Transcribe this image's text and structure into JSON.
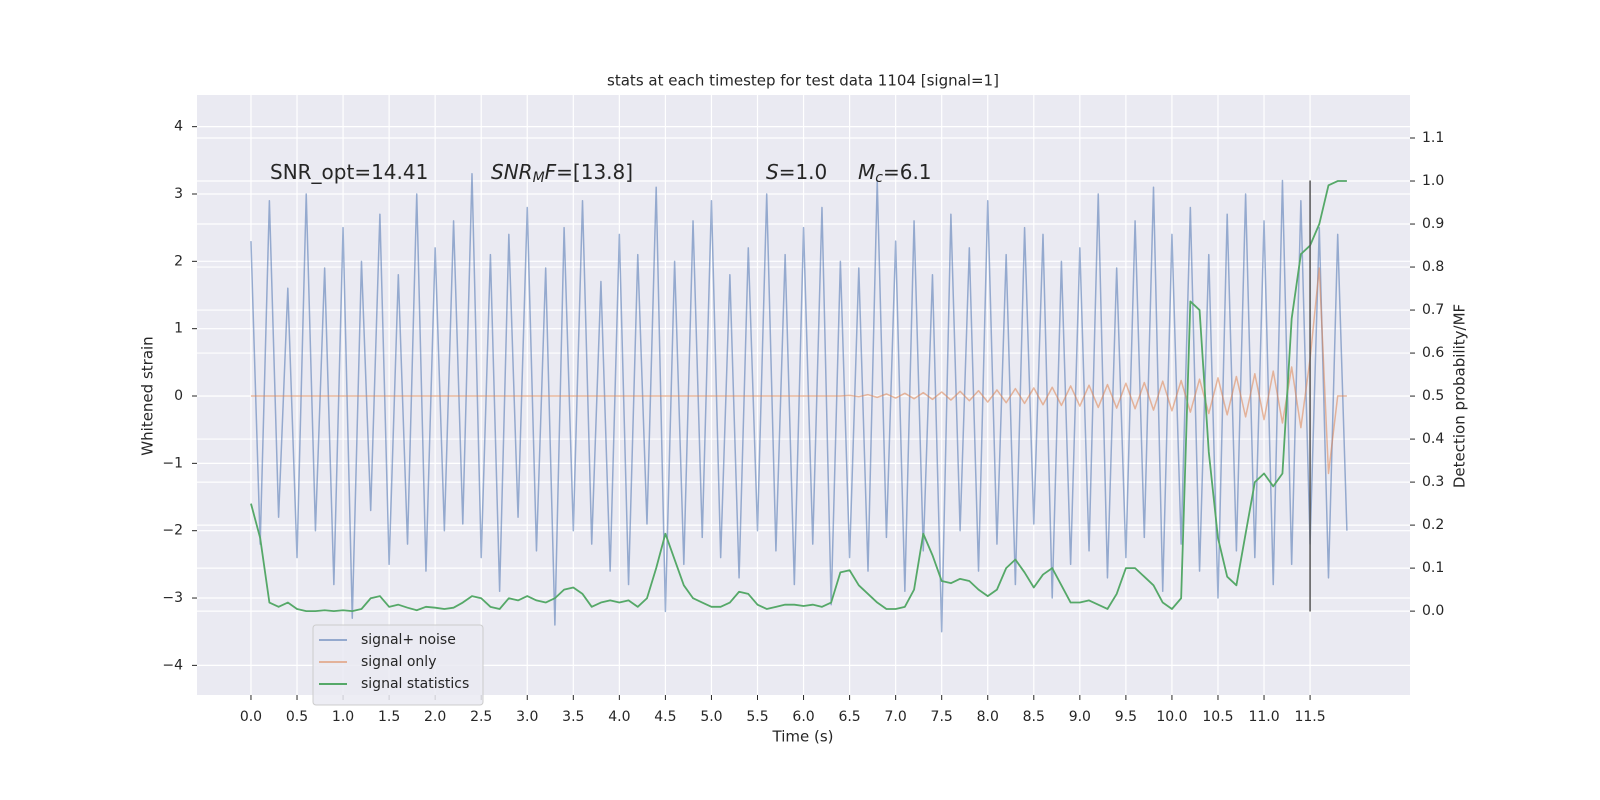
{
  "chart_data": {
    "type": "line",
    "title": "stats at each timestep for test data 1104 [signal=1]",
    "xlabel": "Time (s)",
    "ylabel": "Whitened strain",
    "y2label": "Detection probability/MF",
    "annotations": [
      [
        "SNR_opt=14.41"
      ],
      [
        "SNR",
        "M",
        "F",
        "=[13.8]"
      ],
      [
        "S",
        "=1.0"
      ],
      [
        "M",
        "c",
        "=6.1"
      ]
    ],
    "x": [
      0.0,
      0.1,
      0.2,
      0.3,
      0.4,
      0.5,
      0.6,
      0.7,
      0.8,
      0.9,
      1.0,
      1.1,
      1.2,
      1.3,
      1.4,
      1.5,
      1.6,
      1.7,
      1.8,
      1.9,
      2.0,
      2.1,
      2.2,
      2.3,
      2.4,
      2.5,
      2.6,
      2.7,
      2.8,
      2.9,
      3.0,
      3.1,
      3.2,
      3.3,
      3.4,
      3.5,
      3.6,
      3.7,
      3.8,
      3.9,
      4.0,
      4.1,
      4.2,
      4.3,
      4.4,
      4.5,
      4.6,
      4.7,
      4.8,
      4.9,
      5.0,
      5.1,
      5.2,
      5.3,
      5.4,
      5.5,
      5.6,
      5.7,
      5.8,
      5.9,
      6.0,
      6.1,
      6.2,
      6.3,
      6.4,
      6.5,
      6.6,
      6.7,
      6.8,
      6.9,
      7.0,
      7.1,
      7.2,
      7.3,
      7.4,
      7.5,
      7.6,
      7.7,
      7.8,
      7.9,
      8.0,
      8.1,
      8.2,
      8.3,
      8.4,
      8.5,
      8.6,
      8.7,
      8.8,
      8.9,
      9.0,
      9.1,
      9.2,
      9.3,
      9.4,
      9.5,
      9.6,
      9.7,
      9.8,
      9.9,
      10.0,
      10.1,
      10.2,
      10.3,
      10.4,
      10.5,
      10.6,
      10.7,
      10.8,
      10.9,
      11.0,
      11.1,
      11.2,
      11.3,
      11.4,
      11.5,
      11.6,
      11.7,
      11.8,
      11.9
    ],
    "series": [
      {
        "name": "signal+ noise",
        "color": "#4c72b0",
        "axis": "y",
        "values": [
          2.3,
          -2.2,
          2.9,
          -1.8,
          1.6,
          -2.4,
          3.0,
          -2.0,
          1.9,
          -2.8,
          2.5,
          -3.3,
          2.0,
          -1.7,
          2.7,
          -2.5,
          1.8,
          -2.2,
          3.0,
          -2.6,
          2.2,
          -2.0,
          2.6,
          -1.9,
          3.3,
          -2.4,
          2.1,
          -2.9,
          2.4,
          -1.8,
          2.8,
          -2.3,
          1.9,
          -3.4,
          2.5,
          -2.0,
          2.9,
          -2.2,
          1.7,
          -2.6,
          2.4,
          -2.8,
          2.1,
          -1.9,
          3.1,
          -3.2,
          2.0,
          -2.5,
          2.6,
          -2.1,
          2.9,
          -2.4,
          1.8,
          -2.7,
          2.2,
          -2.0,
          3.0,
          -2.3,
          2.1,
          -2.8,
          2.5,
          -2.2,
          2.8,
          -3.1,
          2.0,
          -2.4,
          1.9,
          -2.6,
          3.2,
          -2.1,
          2.3,
          -2.9,
          2.6,
          -2.3,
          1.8,
          -3.5,
          2.7,
          -2.0,
          2.2,
          -2.6,
          2.9,
          -2.2,
          2.1,
          -2.8,
          2.5,
          -1.9,
          2.4,
          -3.0,
          2.0,
          -2.5,
          2.2,
          -2.3,
          3.0,
          -2.7,
          1.9,
          -2.4,
          2.6,
          -2.1,
          3.1,
          -2.9,
          2.4,
          -2.2,
          2.8,
          -2.6,
          2.1,
          -3.0,
          2.7,
          -2.3,
          3.0,
          -2.4,
          2.6,
          -2.8,
          3.2,
          -2.5,
          2.9,
          -2.2,
          2.5,
          -2.7,
          2.4,
          -2.0
        ]
      },
      {
        "name": "signal only",
        "color": "#dd8452",
        "axis": "y",
        "values": [
          0,
          0,
          0,
          0,
          0,
          0,
          0,
          0,
          0,
          0,
          0,
          0,
          0,
          0,
          0,
          0,
          0,
          0,
          0,
          0,
          0,
          0,
          0,
          0,
          0,
          0,
          0,
          0,
          0,
          0,
          0,
          0,
          0,
          0,
          0,
          0,
          0,
          0,
          0,
          0,
          0,
          0,
          0,
          0,
          0,
          0,
          0,
          0,
          0,
          0,
          0,
          0,
          0,
          0,
          0,
          0,
          0,
          0,
          0,
          0,
          0,
          0,
          0,
          0,
          0,
          0.01,
          -0.01,
          0.02,
          -0.02,
          0.03,
          -0.03,
          0.04,
          -0.04,
          0.05,
          -0.05,
          0.06,
          -0.06,
          0.07,
          -0.07,
          0.08,
          -0.09,
          0.09,
          -0.1,
          0.11,
          -0.11,
          0.12,
          -0.13,
          0.13,
          -0.14,
          0.15,
          -0.15,
          0.16,
          -0.17,
          0.17,
          -0.18,
          0.19,
          -0.19,
          0.2,
          -0.21,
          0.22,
          -0.22,
          0.23,
          -0.24,
          0.25,
          -0.26,
          0.27,
          -0.28,
          0.29,
          -0.31,
          0.33,
          -0.35,
          0.37,
          -0.4,
          0.43,
          -0.47,
          0.55,
          1.9,
          -1.15,
          0,
          0
        ]
      },
      {
        "name": "signal statistics",
        "color": "#55a868",
        "axis": "y2",
        "values": [
          0.25,
          0.17,
          0.02,
          0.01,
          0.02,
          0.005,
          0.0,
          0.0,
          0.002,
          0.0,
          0.002,
          0.0,
          0.005,
          0.03,
          0.035,
          0.01,
          0.015,
          0.008,
          0.002,
          0.01,
          0.008,
          0.005,
          0.008,
          0.02,
          0.035,
          0.03,
          0.01,
          0.005,
          0.03,
          0.025,
          0.035,
          0.025,
          0.02,
          0.03,
          0.05,
          0.055,
          0.04,
          0.01,
          0.02,
          0.025,
          0.02,
          0.025,
          0.01,
          0.03,
          0.1,
          0.18,
          0.12,
          0.06,
          0.03,
          0.02,
          0.01,
          0.01,
          0.02,
          0.045,
          0.04,
          0.015,
          0.005,
          0.01,
          0.015,
          0.015,
          0.012,
          0.015,
          0.01,
          0.02,
          0.09,
          0.095,
          0.06,
          0.04,
          0.02,
          0.005,
          0.005,
          0.01,
          0.05,
          0.18,
          0.13,
          0.07,
          0.065,
          0.075,
          0.07,
          0.05,
          0.035,
          0.05,
          0.1,
          0.12,
          0.09,
          0.055,
          0.085,
          0.1,
          0.06,
          0.02,
          0.02,
          0.025,
          0.015,
          0.005,
          0.04,
          0.1,
          0.1,
          0.08,
          0.06,
          0.02,
          0.005,
          0.03,
          0.72,
          0.7,
          0.37,
          0.17,
          0.08,
          0.06,
          0.18,
          0.3,
          0.32,
          0.29,
          0.32,
          0.68,
          0.83,
          0.85,
          0.9,
          0.99,
          1.0,
          1.0
        ]
      }
    ],
    "vline": {
      "x": 11.5,
      "ylim": [
        -3.2,
        3.2
      ],
      "color": "#555555"
    },
    "xlim": [
      -0.586,
      12.585
    ],
    "xticks": [
      {
        "value": 0,
        "label": "0.0"
      },
      0.5,
      {
        "value": 1,
        "label": "1.0"
      },
      1.5,
      {
        "value": 2,
        "label": "2.0"
      },
      2.5,
      {
        "value": 3,
        "label": "3.0"
      },
      3.5,
      {
        "value": 4,
        "label": "4.0"
      },
      4.5,
      {
        "value": 5,
        "label": "5.0"
      },
      5.5,
      {
        "value": 6,
        "label": "6.0"
      },
      6.5,
      {
        "value": 7,
        "label": "7.0"
      },
      7.5,
      {
        "value": 8,
        "label": "8.0"
      },
      8.5,
      {
        "value": 9,
        "label": "9.0"
      },
      9.5,
      {
        "value": 10,
        "label": "10.0"
      },
      10.5,
      {
        "value": 11,
        "label": "11.0"
      },
      11.5
    ],
    "ylim": [
      -4.44,
      4.47
    ],
    "yticks": [
      {
        "value": -4,
        "label": "−4"
      },
      {
        "value": -3,
        "label": "−3"
      },
      {
        "value": -2,
        "label": "−2"
      },
      {
        "value": -1,
        "label": "−1"
      },
      0,
      1,
      2,
      3,
      4
    ],
    "y2lim": [
      -0.195,
      1.2
    ],
    "y2ticks": [
      {
        "value": 0,
        "label": "0.0"
      },
      0.1,
      0.2,
      0.3,
      0.4,
      0.5,
      0.6,
      0.7,
      0.8,
      0.9,
      {
        "value": 1,
        "label": "1.0"
      },
      1.1
    ],
    "grid": true,
    "legend": "lower left",
    "background": "#eaeaf2"
  }
}
